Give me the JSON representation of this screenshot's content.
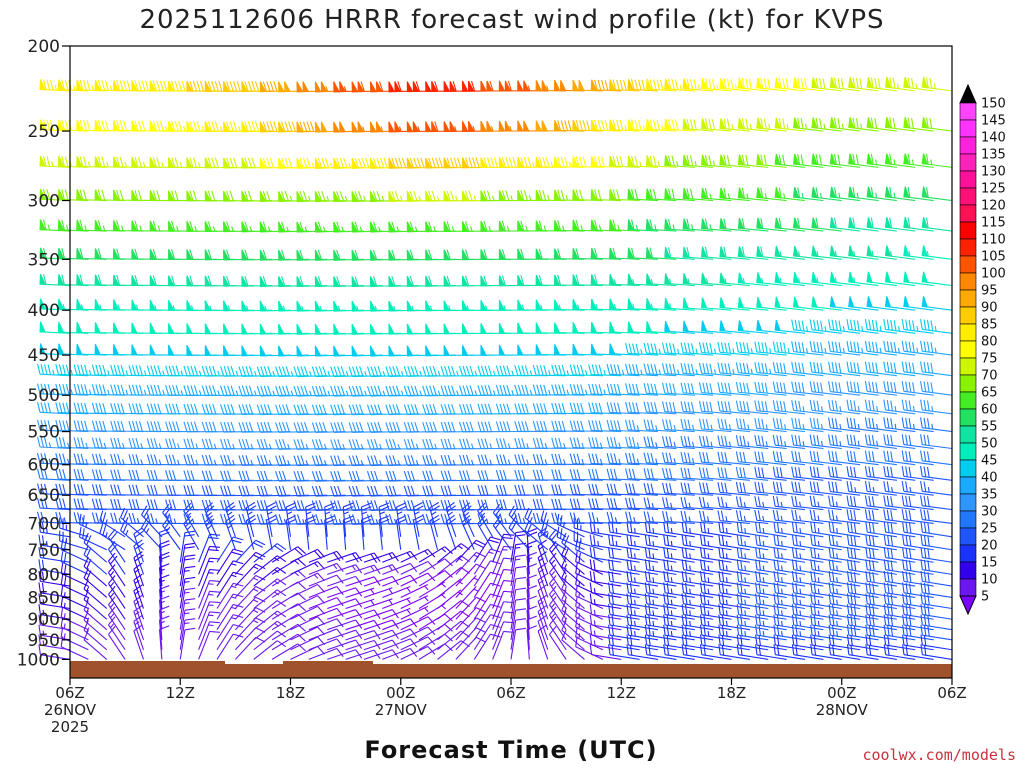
{
  "chart_data": {
    "type": "wind-barb-time-height",
    "title": "2025112606 HRRR forecast wind profile (kt) for KVPS",
    "xlabel": "Forecast Time (UTC)",
    "ylabel": "",
    "credit": "coolwx.com/models",
    "x_axis": {
      "ticks": [
        {
          "hour": 0,
          "lines": [
            "06Z",
            "26NOV",
            "2025"
          ]
        },
        {
          "hour": 6,
          "lines": [
            "12Z"
          ]
        },
        {
          "hour": 12,
          "lines": [
            "18Z"
          ]
        },
        {
          "hour": 18,
          "lines": [
            "00Z",
            "27NOV"
          ]
        },
        {
          "hour": 24,
          "lines": [
            "06Z"
          ]
        },
        {
          "hour": 30,
          "lines": [
            "12Z"
          ]
        },
        {
          "hour": 36,
          "lines": [
            "18Z"
          ]
        },
        {
          "hour": 42,
          "lines": [
            "00Z",
            "28NOV"
          ]
        },
        {
          "hour": 48,
          "lines": [
            "06Z"
          ]
        }
      ],
      "range_hours": [
        0,
        48
      ]
    },
    "y_axis": {
      "unit": "hPa",
      "scale": "log",
      "range": [
        1050,
        200
      ],
      "ticks": [
        "200",
        "250",
        "300",
        "350",
        "400",
        "450",
        "500",
        "550",
        "600",
        "650",
        "700",
        "750",
        "800",
        "850",
        "900",
        "950",
        "1000"
      ]
    },
    "pressure_levels": [
      1000,
      975,
      950,
      925,
      900,
      875,
      850,
      825,
      800,
      775,
      750,
      725,
      700,
      675,
      650,
      625,
      600,
      575,
      550,
      525,
      500,
      475,
      450,
      425,
      400,
      375,
      350,
      325,
      300,
      275,
      250,
      225
    ],
    "wind_speed_kt": {
      "description_of_grid": "speed vs forecast hour and pressure",
      "low_level_min_region": {
        "hours": [
          8,
          28
        ],
        "pressure_range": [
          775,
          950
        ],
        "speed": 8
      },
      "upper_jet_core": {
        "hours": [
          16,
          28
        ],
        "pressure_range": [
          225,
          275
        ],
        "speed": 100
      }
    },
    "ground": {
      "color": "#a0522d"
    },
    "colorbar": {
      "levels": [
        "5",
        "10",
        "15",
        "20",
        "25",
        "30",
        "35",
        "40",
        "45",
        "50",
        "55",
        "60",
        "65",
        "70",
        "75",
        "80",
        "85",
        "90",
        "95",
        "100",
        "105",
        "110",
        "115",
        "120",
        "125",
        "130",
        "135",
        "140",
        "145",
        "150"
      ],
      "colors": [
        "#7a00ff",
        "#6b17f0",
        "#3300ee",
        "#1a33ff",
        "#1f55ff",
        "#2277ff",
        "#2f96ff",
        "#1aaaff",
        "#00ccee",
        "#00eebb",
        "#11e4a2",
        "#22e060",
        "#44ee22",
        "#88f200",
        "#ccf700",
        "#ffff00",
        "#ffee00",
        "#ffcc00",
        "#ffaa00",
        "#ff8800",
        "#ff5500",
        "#ff2200",
        "#ff0000",
        "#ff1155",
        "#ff1177",
        "#ff1199",
        "#ff22bb",
        "#ff22dd",
        "#ff33ff",
        "#ff44ff"
      ]
    }
  }
}
